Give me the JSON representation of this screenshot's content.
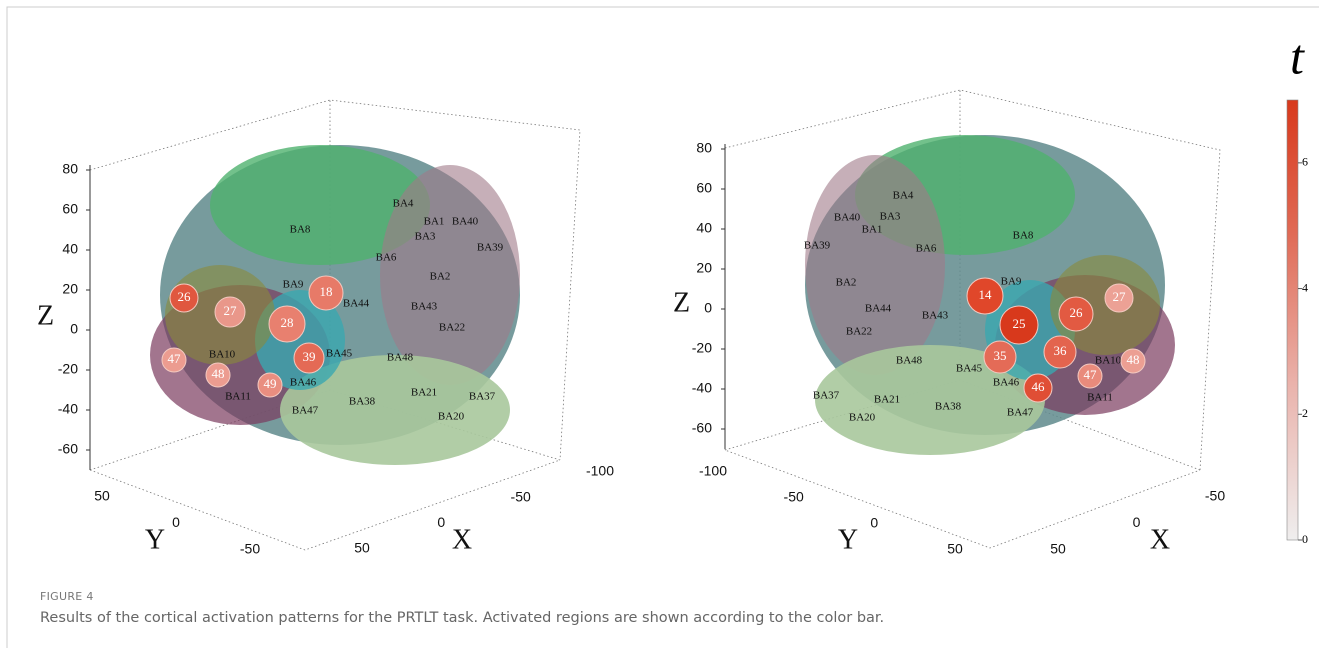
{
  "panels": [
    {
      "z_label": "Z",
      "y_label": "Y",
      "x_label": "X",
      "zticks": [
        80,
        60,
        40,
        20,
        0,
        -20,
        -40,
        -60
      ],
      "left_ticks": [
        50,
        0,
        -50
      ],
      "right_ticks": [
        -100,
        -50,
        0,
        50
      ],
      "regions": [
        "BA8",
        "BA4",
        "BA1",
        "BA40",
        "BA3",
        "BA39",
        "BA6",
        "BA2",
        "BA9",
        "BA44",
        "BA43",
        "BA22",
        "BA10",
        "BA45",
        "BA48",
        "BA46",
        "BA11",
        "BA47",
        "BA38",
        "BA21",
        "BA37",
        "BA20"
      ],
      "channels": [
        "18",
        "26",
        "27",
        "28",
        "39",
        "47",
        "48",
        "49"
      ]
    },
    {
      "z_label": "Z",
      "y_label": "Y",
      "x_label": "X",
      "zticks": [
        80,
        60,
        40,
        20,
        0,
        -20,
        -40,
        -60
      ],
      "left_ticks": [
        -100,
        -50,
        0,
        50
      ],
      "right_ticks": [
        -50,
        0,
        50
      ],
      "regions": [
        "BA4",
        "BA40",
        "BA3",
        "BA1",
        "BA39",
        "BA6",
        "BA8",
        "BA9",
        "BA2",
        "BA44",
        "BA43",
        "BA22",
        "BA48",
        "BA45",
        "BA46",
        "BA10",
        "BA37",
        "BA21",
        "BA38",
        "BA47",
        "BA11",
        "BA20"
      ],
      "channels": [
        "14",
        "25",
        "26",
        "27",
        "35",
        "36",
        "46",
        "47",
        "48"
      ]
    }
  ],
  "colorbar": {
    "title": "t",
    "lim": [
      0,
      7
    ],
    "ticks": [
      0,
      2,
      4,
      6
    ]
  },
  "caption": {
    "label": "FIGURE 4",
    "text": "Results of the cortical activation patterns for the PRTLT task. Activated regions are shown according to the color bar."
  }
}
